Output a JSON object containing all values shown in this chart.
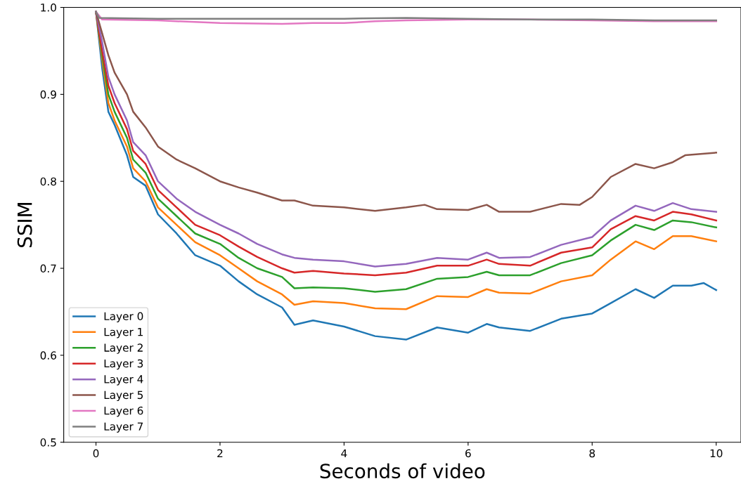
{
  "chart_data": {
    "type": "line",
    "xlabel": "Seconds of video",
    "ylabel": "SSIM",
    "xlim": [
      -0.52,
      10.4
    ],
    "ylim": [
      0.5,
      1.0
    ],
    "xticks": [
      0,
      2,
      4,
      6,
      8,
      10
    ],
    "yticks": [
      0.5,
      0.6,
      0.7,
      0.8,
      0.9,
      {
        "value": 1,
        "label": "1.0"
      }
    ],
    "grid": false,
    "legend": "bottom left",
    "marker": "none",
    "line_style": "solid",
    "series": [
      {
        "name": "Layer 0",
        "color": "#1f77b4",
        "x": [
          0,
          0.1,
          0.2,
          0.3,
          0.5,
          0.6,
          0.8,
          1.0,
          1.3,
          1.6,
          2.0,
          2.3,
          2.6,
          3.0,
          3.2,
          3.5,
          4.0,
          4.5,
          5.0,
          5.5,
          6.0,
          6.3,
          6.5,
          7.0,
          7.5,
          8.0,
          8.3,
          8.7,
          9.0,
          9.3,
          9.6,
          9.8,
          10
        ],
        "values": [
          0.995,
          0.93,
          0.88,
          0.865,
          0.83,
          0.805,
          0.795,
          0.762,
          0.74,
          0.715,
          0.703,
          0.685,
          0.67,
          0.655,
          0.635,
          0.64,
          0.633,
          0.622,
          0.618,
          0.632,
          0.626,
          0.636,
          0.632,
          0.628,
          0.642,
          0.648,
          0.66,
          0.676,
          0.666,
          0.68,
          0.68,
          0.683,
          0.675
        ]
      },
      {
        "name": "Layer 1",
        "color": "#ff7f0e",
        "x": [
          0,
          0.1,
          0.2,
          0.3,
          0.5,
          0.6,
          0.8,
          1.0,
          1.3,
          1.6,
          2.0,
          2.3,
          2.6,
          3.0,
          3.2,
          3.5,
          4.0,
          4.5,
          5.0,
          5.5,
          6.0,
          6.3,
          6.5,
          7.0,
          7.5,
          8.0,
          8.3,
          8.7,
          9.0,
          9.3,
          9.6,
          10
        ],
        "values": [
          0.995,
          0.94,
          0.89,
          0.87,
          0.84,
          0.815,
          0.8,
          0.77,
          0.75,
          0.73,
          0.715,
          0.7,
          0.685,
          0.67,
          0.658,
          0.662,
          0.66,
          0.654,
          0.653,
          0.668,
          0.667,
          0.676,
          0.672,
          0.671,
          0.685,
          0.692,
          0.71,
          0.731,
          0.722,
          0.737,
          0.737,
          0.731
        ]
      },
      {
        "name": "Layer 2",
        "color": "#2ca02c",
        "x": [
          0,
          0.1,
          0.2,
          0.3,
          0.5,
          0.6,
          0.8,
          1.0,
          1.3,
          1.6,
          2.0,
          2.3,
          2.6,
          3.0,
          3.2,
          3.5,
          4.0,
          4.5,
          5.0,
          5.5,
          6.0,
          6.3,
          6.5,
          7.0,
          7.5,
          8.0,
          8.3,
          8.7,
          9.0,
          9.3,
          9.6,
          10
        ],
        "values": [
          0.995,
          0.945,
          0.9,
          0.88,
          0.85,
          0.825,
          0.81,
          0.78,
          0.76,
          0.74,
          0.728,
          0.712,
          0.7,
          0.69,
          0.677,
          0.678,
          0.677,
          0.673,
          0.676,
          0.688,
          0.69,
          0.696,
          0.692,
          0.692,
          0.706,
          0.715,
          0.732,
          0.75,
          0.744,
          0.755,
          0.753,
          0.747
        ]
      },
      {
        "name": "Layer 3",
        "color": "#d62728",
        "x": [
          0,
          0.1,
          0.2,
          0.3,
          0.5,
          0.6,
          0.8,
          1.0,
          1.3,
          1.6,
          2.0,
          2.3,
          2.6,
          3.0,
          3.2,
          3.5,
          4.0,
          4.5,
          5.0,
          5.5,
          6.0,
          6.3,
          6.5,
          7.0,
          7.5,
          8.0,
          8.3,
          8.7,
          9.0,
          9.3,
          9.6,
          10
        ],
        "values": [
          0.995,
          0.95,
          0.91,
          0.89,
          0.86,
          0.835,
          0.82,
          0.79,
          0.77,
          0.75,
          0.738,
          0.725,
          0.713,
          0.7,
          0.695,
          0.697,
          0.694,
          0.692,
          0.695,
          0.703,
          0.703,
          0.71,
          0.705,
          0.703,
          0.718,
          0.724,
          0.745,
          0.76,
          0.755,
          0.765,
          0.762,
          0.755
        ]
      },
      {
        "name": "Layer 4",
        "color": "#9467bd",
        "x": [
          0,
          0.1,
          0.2,
          0.3,
          0.5,
          0.6,
          0.8,
          1.0,
          1.3,
          1.6,
          2.0,
          2.3,
          2.6,
          3.0,
          3.2,
          3.5,
          4.0,
          4.5,
          5.0,
          5.5,
          6.0,
          6.3,
          6.5,
          7.0,
          7.5,
          8.0,
          8.3,
          8.7,
          9.0,
          9.3,
          9.6,
          10
        ],
        "values": [
          0.995,
          0.96,
          0.92,
          0.9,
          0.87,
          0.845,
          0.83,
          0.8,
          0.78,
          0.765,
          0.75,
          0.74,
          0.728,
          0.716,
          0.712,
          0.71,
          0.708,
          0.702,
          0.705,
          0.712,
          0.71,
          0.718,
          0.712,
          0.713,
          0.727,
          0.736,
          0.755,
          0.772,
          0.766,
          0.775,
          0.768,
          0.765
        ]
      },
      {
        "name": "Layer 5",
        "color": "#8c564b",
        "x": [
          0,
          0.1,
          0.2,
          0.3,
          0.5,
          0.6,
          0.8,
          1.0,
          1.3,
          1.6,
          2.0,
          2.3,
          2.6,
          3.0,
          3.2,
          3.5,
          4.0,
          4.5,
          5.0,
          5.3,
          5.5,
          6.0,
          6.3,
          6.5,
          7.0,
          7.5,
          7.8,
          8.0,
          8.3,
          8.7,
          9.0,
          9.3,
          9.5,
          10
        ],
        "values": [
          0.995,
          0.97,
          0.945,
          0.925,
          0.9,
          0.88,
          0.862,
          0.84,
          0.825,
          0.815,
          0.8,
          0.793,
          0.787,
          0.778,
          0.778,
          0.772,
          0.77,
          0.766,
          0.77,
          0.773,
          0.768,
          0.767,
          0.773,
          0.765,
          0.765,
          0.774,
          0.773,
          0.782,
          0.805,
          0.82,
          0.815,
          0.822,
          0.83,
          0.833
        ]
      },
      {
        "name": "Layer 6",
        "color": "#e377c2",
        "x": [
          0,
          0.1,
          1.0,
          2.0,
          3.0,
          3.5,
          4.0,
          4.5,
          5.0,
          6.0,
          7.0,
          8.0,
          9.0,
          10
        ],
        "values": [
          0.995,
          0.986,
          0.985,
          0.982,
          0.981,
          0.982,
          0.982,
          0.984,
          0.985,
          0.986,
          0.986,
          0.985,
          0.984,
          0.984
        ]
      },
      {
        "name": "Layer 7",
        "color": "#7f7f7f",
        "x": [
          0,
          0.05,
          1,
          2,
          3,
          4,
          5,
          6,
          7,
          8,
          9,
          10
        ],
        "values": [
          0.995,
          0.988,
          0.987,
          0.987,
          0.987,
          0.987,
          0.988,
          0.987,
          0.986,
          0.986,
          0.985,
          0.985
        ]
      }
    ]
  }
}
